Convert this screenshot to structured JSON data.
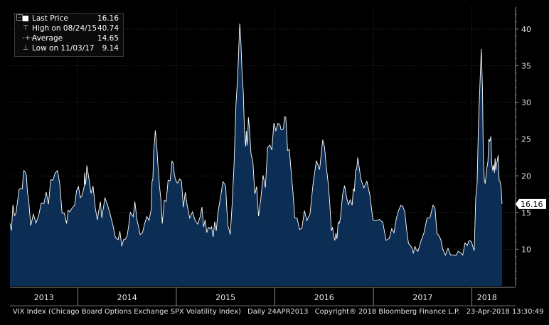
{
  "legend": {
    "last_label": "Last Price",
    "last_value": "16.16",
    "high_label": "High on 08/24/15",
    "high_value": "40.74",
    "avg_label": "Average",
    "avg_value": "14.65",
    "low_label": "Low on 11/03/17",
    "low_value": "9.14"
  },
  "footer": {
    "name": "VIX Index (Chicago Board Options Exchange SPX Volatility Index)",
    "period": "Daily 24APR2013",
    "copyright": "Copyright® 2018 Bloomberg Finance L.P.",
    "timestamp": "23-Apr-2018 13:30:49"
  },
  "colors": {
    "area": "#0c2e55",
    "line": "#ffffff",
    "grid": "#4d4d4d",
    "background": "#000000"
  },
  "chart_data": {
    "type": "area",
    "ylim": [
      5,
      43
    ],
    "yticks": [
      10,
      15,
      20,
      25,
      30,
      35,
      40
    ],
    "grid": true,
    "legend_position": "top-left",
    "last_value_label": "16.16",
    "x_categories": [
      "2013",
      "2014",
      "2015",
      "2016",
      "2017",
      "2018"
    ],
    "x": [
      "2013-04-24",
      "2013-05-22",
      "2013-06-20",
      "2013-07-10",
      "2013-08-28",
      "2013-10-09",
      "2013-11-20",
      "2013-12-20",
      "2014-01-24",
      "2014-02-03",
      "2014-03-14",
      "2014-04-11",
      "2014-05-30",
      "2014-07-03",
      "2014-07-31",
      "2014-08-20",
      "2014-09-30",
      "2014-10-15",
      "2014-11-10",
      "2014-12-16",
      "2015-01-06",
      "2015-02-10",
      "2015-03-31",
      "2015-04-30",
      "2015-05-29",
      "2015-06-29",
      "2015-07-20",
      "2015-08-24",
      "2015-09-15",
      "2015-09-28",
      "2015-11-02",
      "2015-12-14",
      "2016-01-20",
      "2016-02-11",
      "2016-03-15",
      "2016-04-29",
      "2016-06-27",
      "2016-07-29",
      "2016-08-19",
      "2016-09-09",
      "2016-10-14",
      "2016-11-04",
      "2016-12-30",
      "2017-03-01",
      "2017-04-13",
      "2017-05-18",
      "2017-06-15",
      "2017-08-10",
      "2017-09-15",
      "2017-11-03",
      "2017-12-15",
      "2018-01-10",
      "2018-02-05",
      "2018-02-16",
      "2018-03-05",
      "2018-03-23",
      "2018-04-05",
      "2018-04-23"
    ],
    "y": [
      13.5,
      16.5,
      20.5,
      13.2,
      16.2,
      20.4,
      13.5,
      16.0,
      18.5,
      21.4,
      14.0,
      17.0,
      11.3,
      11.9,
      16.5,
      12.0,
      15.5,
      26.2,
      13.5,
      22.0,
      19.0,
      16.0,
      14.5,
      13.0,
      12.5,
      18.9,
      12.0,
      40.74,
      24.0,
      27.0,
      14.5,
      24.2,
      27.0,
      28.0,
      14.3,
      13.9,
      24.9,
      12.5,
      11.4,
      17.5,
      16.0,
      22.5,
      14.0,
      11.5,
      16.0,
      10.5,
      9.7,
      16.0,
      10.0,
      9.14,
      10.5,
      9.8,
      37.3,
      19.5,
      25.0,
      21.5,
      22.0,
      16.16
    ]
  }
}
